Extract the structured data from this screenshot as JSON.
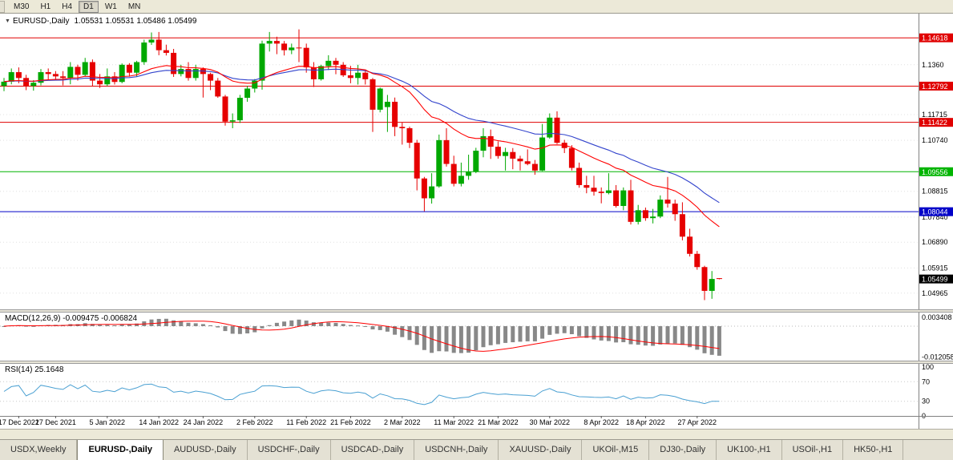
{
  "icons": {
    "collapse": "▼"
  },
  "toolbar": {
    "timeframes": [
      {
        "label": "M30",
        "active": false
      },
      {
        "label": "H1",
        "active": false
      },
      {
        "label": "H4",
        "active": false
      },
      {
        "label": "D1",
        "active": true
      },
      {
        "label": "W1",
        "active": false
      },
      {
        "label": "MN",
        "active": false
      }
    ]
  },
  "chart": {
    "symbol_period": "EURUSD-,Daily",
    "ohlc": "1.05531 1.05531 1.05486 1.05499"
  },
  "indicators": {
    "macd_label": "MACD(12,26,9) -0.009475 -0.006824",
    "rsi_label": "RSI(14) 25.1648"
  },
  "colors": {
    "bull": "#00a800",
    "bear": "#e60000",
    "ma_fast": "#ff0000",
    "ma_slow": "#3344cc",
    "macd_hist": "#888888",
    "macd_signal": "#ff0000",
    "rsi_line": "#4aa0d2",
    "line_red": "#e00000",
    "line_green": "#00b400",
    "line_blue": "#0000c8",
    "current_price_bg": "#000000",
    "grid": "#e0e0e0",
    "axis_line": "#808080"
  },
  "chart_data": {
    "type": "candlestick",
    "title": "EURUSD-,Daily",
    "ohlc_current": [
      1.05531,
      1.05531,
      1.05486,
      1.05499
    ],
    "price_axis_ticks": [
      {
        "price": 1.136,
        "label": "1.1360"
      },
      {
        "price": 1.11715,
        "label": "1.11715"
      },
      {
        "price": 1.1074,
        "label": "1.10740"
      },
      {
        "price": 1.08815,
        "label": "1.08815"
      },
      {
        "price": 1.0784,
        "label": "1.07840"
      },
      {
        "price": 1.0689,
        "label": "1.06890"
      },
      {
        "price": 1.05915,
        "label": "1.05915"
      },
      {
        "price": 1.04965,
        "label": "1.04965"
      }
    ],
    "hlines": [
      {
        "price": 1.14618,
        "label": "1.14618",
        "color": "#e00000"
      },
      {
        "price": 1.12792,
        "label": "1.12792",
        "color": "#e00000"
      },
      {
        "price": 1.11422,
        "label": "1.11422",
        "color": "#e00000"
      },
      {
        "price": 1.09556,
        "label": "1.09556",
        "color": "#00b400"
      },
      {
        "price": 1.08044,
        "label": "1.08044",
        "color": "#0000c8"
      }
    ],
    "current_price": {
      "price": 1.05499,
      "label": "1.05499"
    },
    "moving_averages": [
      {
        "period": 20,
        "color": "#ff0000"
      },
      {
        "period": 34,
        "color": "#3344cc"
      }
    ],
    "macd": {
      "params": "12,26,9",
      "main": -0.009475,
      "signal": -0.006824,
      "axis_ticks": [
        {
          "value": 0.003408,
          "label": "0.003408"
        },
        {
          "value": -0.012058,
          "label": "-0.012058"
        }
      ]
    },
    "rsi": {
      "period": 14,
      "value": 25.1648,
      "levels": [
        70,
        30
      ],
      "axis_ticks": [
        {
          "value": 100,
          "label": "100"
        },
        {
          "value": 70,
          "label": "70"
        },
        {
          "value": 30,
          "label": "30"
        },
        {
          "value": 0,
          "label": "0"
        }
      ]
    },
    "date_ticks": [
      {
        "index": 2,
        "label": "17 Dec 2021"
      },
      {
        "index": 7,
        "label": "27 Dec 2021"
      },
      {
        "index": 14,
        "label": "5 Jan 2022"
      },
      {
        "index": 21,
        "label": "14 Jan 2022"
      },
      {
        "index": 27,
        "label": "24 Jan 2022"
      },
      {
        "index": 34,
        "label": "2 Feb 2022"
      },
      {
        "index": 41,
        "label": "11 Feb 2022"
      },
      {
        "index": 47,
        "label": "21 Feb 2022"
      },
      {
        "index": 54,
        "label": "2 Mar 2022"
      },
      {
        "index": 61,
        "label": "11 Mar 2022"
      },
      {
        "index": 67,
        "label": "21 Mar 2022"
      },
      {
        "index": 74,
        "label": "30 Mar 2022"
      },
      {
        "index": 81,
        "label": "8 Apr 2022"
      },
      {
        "index": 87,
        "label": "18 Apr 2022"
      },
      {
        "index": 94,
        "label": "27 Apr 2022"
      }
    ],
    "candles": [
      [
        1.128,
        1.131,
        1.126,
        1.1296
      ],
      [
        1.1296,
        1.1346,
        1.1286,
        1.1332
      ],
      [
        1.1332,
        1.135,
        1.129,
        1.131
      ],
      [
        1.131,
        1.1322,
        1.1264,
        1.128
      ],
      [
        1.128,
        1.1302,
        1.1262,
        1.1292
      ],
      [
        1.1292,
        1.1344,
        1.1282,
        1.1332
      ],
      [
        1.1332,
        1.1346,
        1.13,
        1.1325
      ],
      [
        1.1325,
        1.1336,
        1.1302,
        1.1316
      ],
      [
        1.1316,
        1.1336,
        1.1282,
        1.131
      ],
      [
        1.131,
        1.137,
        1.1286,
        1.1352
      ],
      [
        1.1352,
        1.136,
        1.13,
        1.1322
      ],
      [
        1.1322,
        1.1386,
        1.1316,
        1.137
      ],
      [
        1.137,
        1.138,
        1.128,
        1.13
      ],
      [
        1.13,
        1.1325,
        1.1272,
        1.1286
      ],
      [
        1.1286,
        1.1346,
        1.128,
        1.1316
      ],
      [
        1.1316,
        1.1332,
        1.1285,
        1.1295
      ],
      [
        1.1295,
        1.1365,
        1.129,
        1.136
      ],
      [
        1.136,
        1.1366,
        1.1315,
        1.133
      ],
      [
        1.133,
        1.1375,
        1.1314,
        1.137
      ],
      [
        1.137,
        1.1455,
        1.136,
        1.1444
      ],
      [
        1.1444,
        1.1482,
        1.1435,
        1.1455
      ],
      [
        1.1455,
        1.1484,
        1.1396,
        1.1415
      ],
      [
        1.1415,
        1.1436,
        1.1395,
        1.1405
      ],
      [
        1.1405,
        1.142,
        1.1314,
        1.1325
      ],
      [
        1.1325,
        1.136,
        1.1316,
        1.1344
      ],
      [
        1.1344,
        1.137,
        1.13,
        1.131
      ],
      [
        1.131,
        1.136,
        1.13,
        1.1344
      ],
      [
        1.1344,
        1.135,
        1.1236,
        1.1325
      ],
      [
        1.1325,
        1.133,
        1.1264,
        1.13
      ],
      [
        1.13,
        1.131,
        1.1235,
        1.124
      ],
      [
        1.124,
        1.1246,
        1.113,
        1.1145
      ],
      [
        1.1145,
        1.1176,
        1.112,
        1.115
      ],
      [
        1.115,
        1.1246,
        1.114,
        1.1235
      ],
      [
        1.1235,
        1.128,
        1.122,
        1.127
      ],
      [
        1.127,
        1.1306,
        1.1255,
        1.13
      ],
      [
        1.13,
        1.1451,
        1.1266,
        1.144
      ],
      [
        1.144,
        1.1484,
        1.141,
        1.145
      ],
      [
        1.145,
        1.1466,
        1.14,
        1.144
      ],
      [
        1.144,
        1.145,
        1.1395,
        1.1415
      ],
      [
        1.1415,
        1.144,
        1.14,
        1.1425
      ],
      [
        1.1425,
        1.1494,
        1.137,
        1.1424
      ],
      [
        1.1424,
        1.144,
        1.133,
        1.135
      ],
      [
        1.135,
        1.137,
        1.1276,
        1.1305
      ],
      [
        1.1305,
        1.136,
        1.13,
        1.1355
      ],
      [
        1.1355,
        1.1396,
        1.134,
        1.1375
      ],
      [
        1.1375,
        1.1386,
        1.1324,
        1.136
      ],
      [
        1.136,
        1.137,
        1.1314,
        1.132
      ],
      [
        1.132,
        1.1356,
        1.129,
        1.131
      ],
      [
        1.131,
        1.136,
        1.1285,
        1.133
      ],
      [
        1.133,
        1.1342,
        1.1285,
        1.1305
      ],
      [
        1.1305,
        1.131,
        1.1106,
        1.119
      ],
      [
        1.119,
        1.1274,
        1.118,
        1.127
      ],
      [
        1.12,
        1.1246,
        1.1106,
        1.122
      ],
      [
        1.122,
        1.1236,
        1.109,
        1.1125
      ],
      [
        1.1125,
        1.1142,
        1.1058,
        1.112
      ],
      [
        1.112,
        1.1126,
        1.1045,
        1.1065
      ],
      [
        1.1065,
        1.1076,
        1.0885,
        1.093
      ],
      [
        1.093,
        1.0936,
        1.0806,
        1.0855
      ],
      [
        1.0855,
        1.095,
        1.0835,
        1.09
      ],
      [
        1.09,
        1.1096,
        1.0895,
        1.1075
      ],
      [
        1.1075,
        1.112,
        1.0975,
        1.0985
      ],
      [
        1.0985,
        1.1016,
        1.09,
        1.091
      ],
      [
        1.091,
        1.099,
        1.09,
        1.094
      ],
      [
        1.094,
        1.102,
        1.0925,
        1.0955
      ],
      [
        1.0955,
        1.1046,
        1.095,
        1.1035
      ],
      [
        1.1035,
        1.112,
        1.101,
        1.109
      ],
      [
        1.109,
        1.1115,
        1.1004,
        1.105
      ],
      [
        1.105,
        1.107,
        1.1005,
        1.1015
      ],
      [
        1.1015,
        1.1046,
        1.096,
        1.103
      ],
      [
        1.103,
        1.1045,
        1.0965,
        1.1005
      ],
      [
        1.1005,
        1.1016,
        1.096,
        1.0995
      ],
      [
        1.0995,
        1.104,
        1.098,
        1.0985
      ],
      [
        1.0985,
        1.1,
        1.0944,
        1.096
      ],
      [
        1.096,
        1.1136,
        1.0958,
        1.1085
      ],
      [
        1.1085,
        1.1176,
        1.108,
        1.116
      ],
      [
        1.116,
        1.1184,
        1.106,
        1.1065
      ],
      [
        1.1065,
        1.1076,
        1.1026,
        1.1045
      ],
      [
        1.1045,
        1.1056,
        1.096,
        1.097
      ],
      [
        1.097,
        1.099,
        1.0895,
        1.0905
      ],
      [
        1.0905,
        1.094,
        1.0874,
        1.0895
      ],
      [
        1.0895,
        1.094,
        1.0865,
        1.088
      ],
      [
        1.088,
        1.0896,
        1.0836,
        1.0875
      ],
      [
        1.0875,
        1.095,
        1.087,
        1.0885
      ],
      [
        1.0885,
        1.0905,
        1.082,
        1.0826
      ],
      [
        1.0826,
        1.0896,
        1.081,
        1.0885
      ],
      [
        1.0885,
        1.0925,
        1.0756,
        1.0766
      ],
      [
        1.0766,
        1.083,
        1.0756,
        1.081
      ],
      [
        1.081,
        1.082,
        1.077,
        1.078
      ],
      [
        1.078,
        1.0815,
        1.076,
        1.0786
      ],
      [
        1.0786,
        1.0866,
        1.078,
        1.085
      ],
      [
        1.085,
        1.0936,
        1.082,
        1.0835
      ],
      [
        1.0835,
        1.085,
        1.077,
        1.0795
      ],
      [
        1.0795,
        1.084,
        1.0696,
        1.071
      ],
      [
        1.071,
        1.074,
        1.0635,
        1.0645
      ],
      [
        1.0645,
        1.0656,
        1.0585,
        1.0595
      ],
      [
        1.0595,
        1.06,
        1.047,
        1.0505
      ],
      [
        1.0505,
        1.058,
        1.0475,
        1.055
      ],
      [
        1.05531,
        1.05531,
        1.05486,
        1.05499
      ]
    ]
  },
  "tabs": [
    {
      "label": "USDX,Weekly",
      "active": false
    },
    {
      "label": "EURUSD-,Daily",
      "active": true
    },
    {
      "label": "AUDUSD-,Daily",
      "active": false
    },
    {
      "label": "USDCHF-,Daily",
      "active": false
    },
    {
      "label": "USDCAD-,Daily",
      "active": false
    },
    {
      "label": "USDCNH-,Daily",
      "active": false
    },
    {
      "label": "XAUUSD-,Daily",
      "active": false
    },
    {
      "label": "UKOil-,M15",
      "active": false
    },
    {
      "label": "DJ30-,Daily",
      "active": false
    },
    {
      "label": "UK100-,H1",
      "active": false
    },
    {
      "label": "USOil-,H1",
      "active": false
    },
    {
      "label": "HK50-,H1",
      "active": false
    }
  ]
}
